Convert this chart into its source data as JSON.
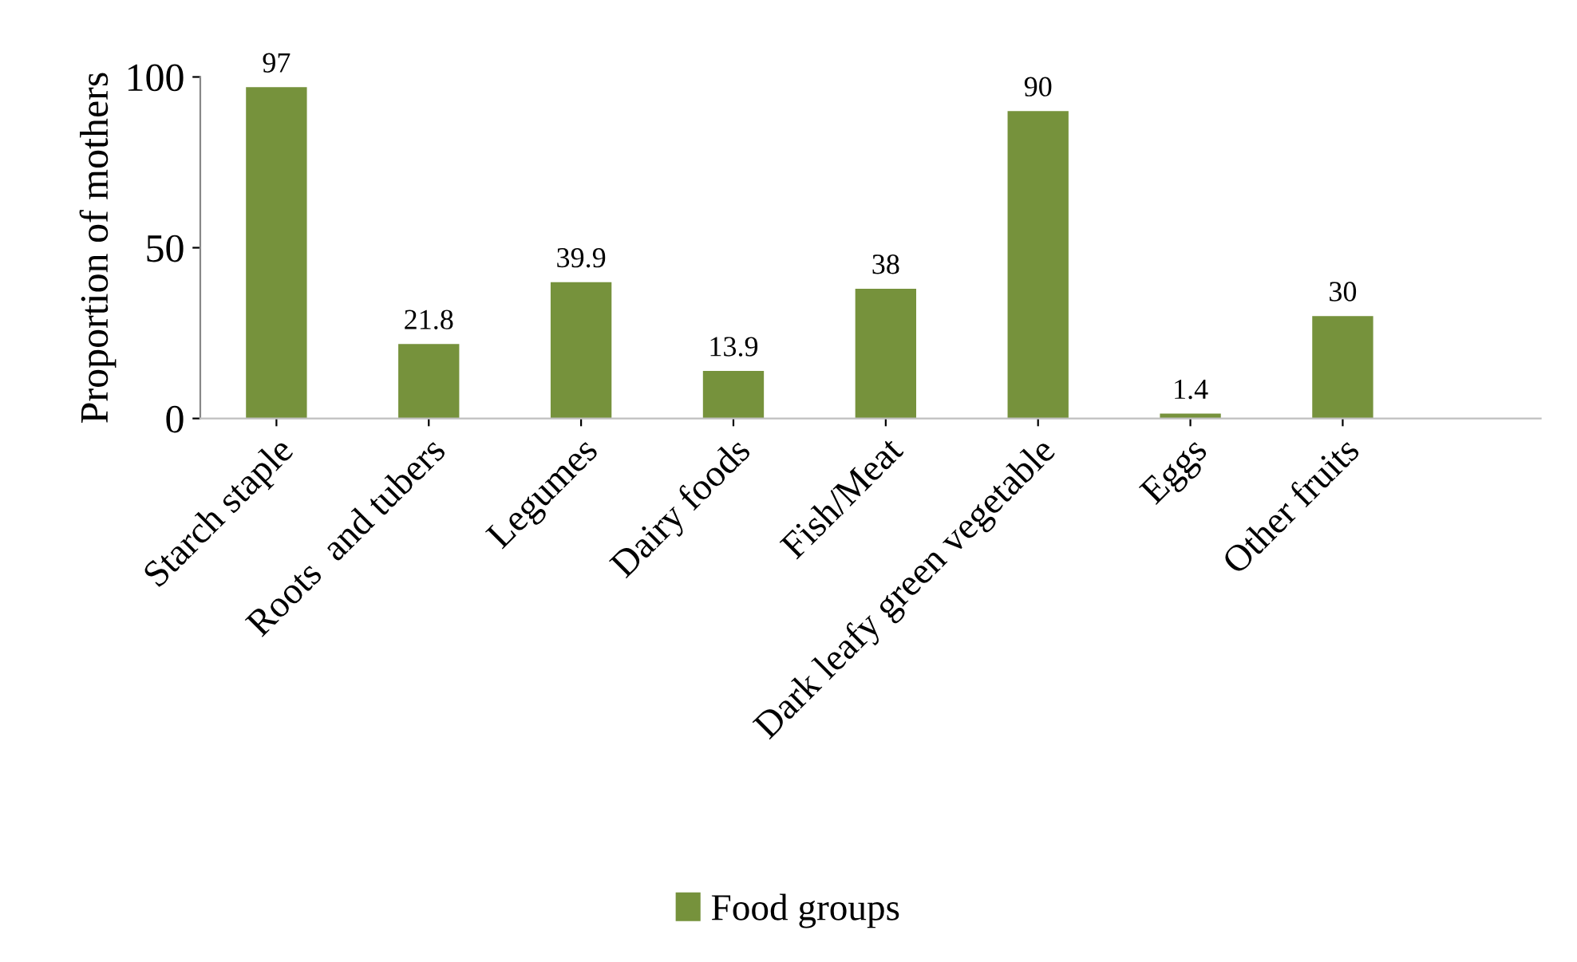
{
  "chart_data": {
    "type": "bar",
    "ylabel": "Proportion of mothers",
    "categories": [
      "Starch staple",
      "Roots  and tubers",
      "Legumes",
      "Dairy foods",
      "Fish/Meat",
      "Dark leafy green vegetable",
      "Eggs",
      "Other fruits"
    ],
    "series": [
      {
        "name": "Food groups",
        "color": "#76923c",
        "values": [
          97,
          21.8,
          39.9,
          13.9,
          38,
          90,
          1.4,
          30
        ]
      }
    ],
    "ylim": [
      0,
      100
    ],
    "yticks": [
      0,
      50,
      100
    ],
    "data_labels": true,
    "legend": "bottom",
    "grid": false
  }
}
